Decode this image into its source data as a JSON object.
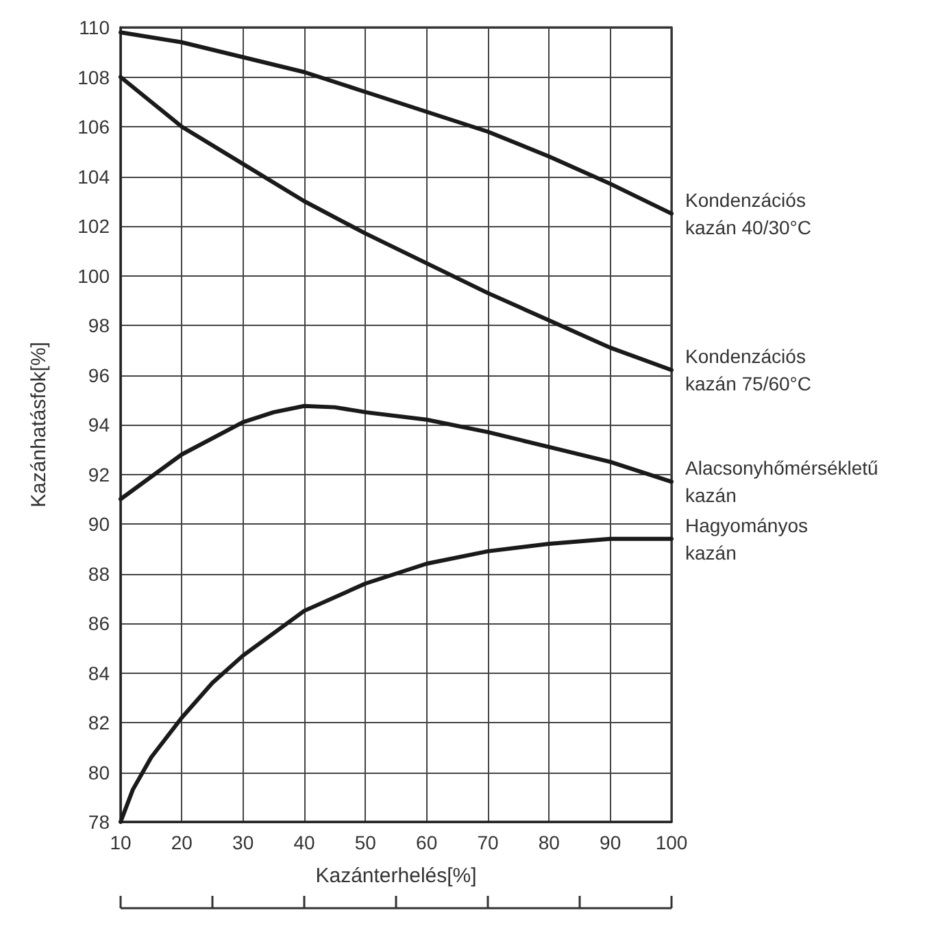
{
  "chart_data": {
    "type": "line",
    "xlabel": "Kazánterhelés[%]",
    "ylabel": "Kazánhatásfok[%]",
    "xlim": [
      10,
      100
    ],
    "xticks": [
      10,
      20,
      30,
      40,
      50,
      60,
      70,
      80,
      90,
      100
    ],
    "ylim": [
      78,
      110
    ],
    "yticks": [
      78,
      80,
      82,
      84,
      86,
      88,
      90,
      92,
      94,
      96,
      98,
      100,
      102,
      104,
      106,
      108,
      110
    ],
    "grid": true,
    "marker": "none",
    "line_style": "solid",
    "series": [
      {
        "name": "Kondenzációs\nkazán 40/30°C",
        "color": "#1a1a1a",
        "x": [
          10,
          20,
          30,
          40,
          50,
          60,
          70,
          80,
          90,
          100
        ],
        "values": [
          109.8,
          109.4,
          108.8,
          108.2,
          107.4,
          106.6,
          105.8,
          104.8,
          103.7,
          102.5
        ]
      },
      {
        "name": "Kondenzációs\nkazán 75/60°C",
        "color": "#1a1a1a",
        "x": [
          10,
          15,
          20,
          30,
          40,
          50,
          60,
          70,
          80,
          90,
          100
        ],
        "values": [
          108,
          107,
          106,
          104.5,
          103,
          101.7,
          100.5,
          99.3,
          98.2,
          97.1,
          96.2
        ]
      },
      {
        "name": "Alacsonyhőmérsékletű\nkazán",
        "color": "#1a1a1a",
        "x": [
          10,
          20,
          30,
          35,
          40,
          45,
          50,
          60,
          70,
          80,
          90,
          100
        ],
        "values": [
          91,
          92.8,
          94.1,
          94.5,
          94.75,
          94.7,
          94.5,
          94.2,
          93.7,
          93.1,
          92.5,
          91.7
        ]
      },
      {
        "name": "Hagyományos\nkazán",
        "color": "#1a1a1a",
        "x": [
          10,
          12,
          15,
          20,
          25,
          30,
          40,
          50,
          55,
          60,
          70,
          80,
          90,
          100
        ],
        "values": [
          78,
          79.3,
          80.6,
          82.2,
          83.6,
          84.7,
          86.5,
          87.6,
          88,
          88.4,
          88.9,
          89.2,
          89.4,
          89.4
        ]
      }
    ]
  }
}
